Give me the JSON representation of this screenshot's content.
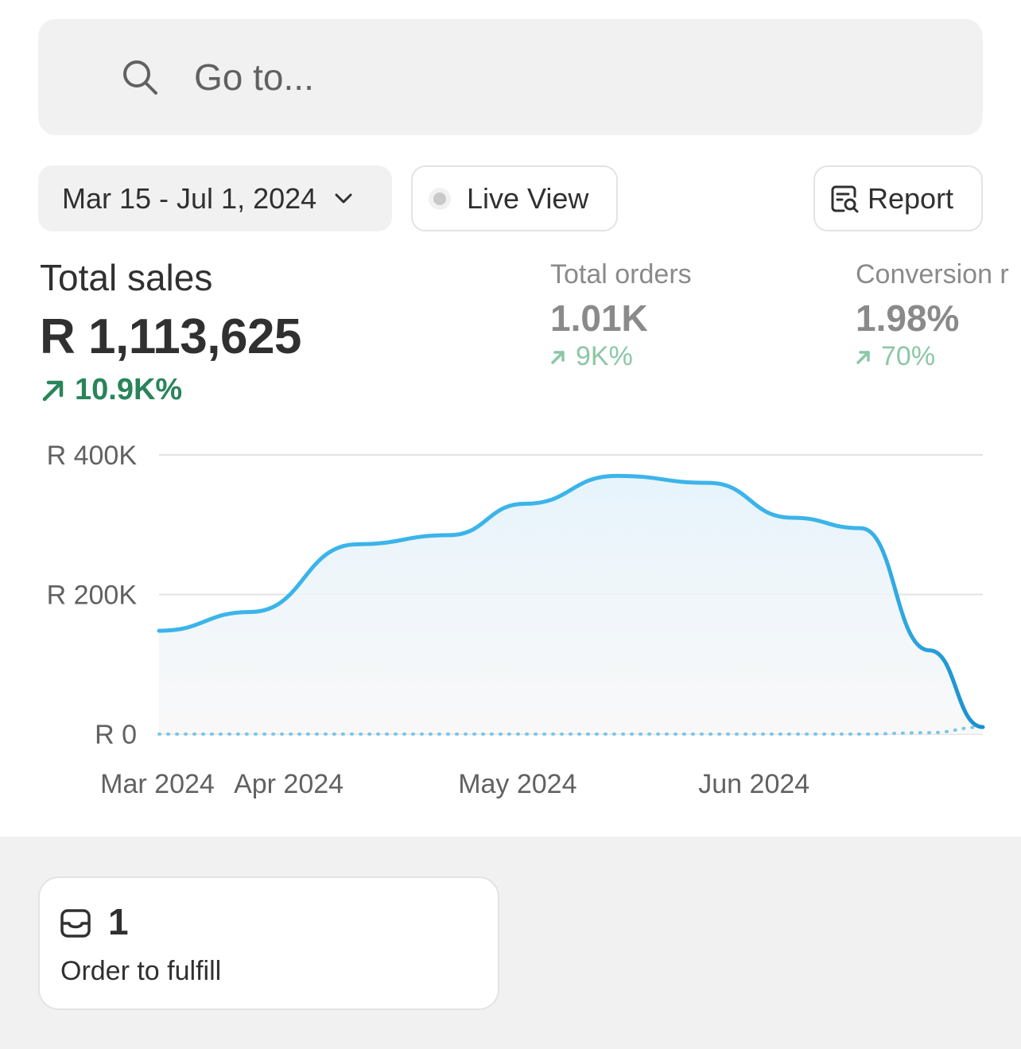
{
  "search": {
    "placeholder": "Go to..."
  },
  "toolbar": {
    "date_range": "Mar 15 - Jul 1, 2024",
    "live_view": "Live View",
    "report": "Report"
  },
  "metrics": {
    "total_sales": {
      "label": "Total sales",
      "value": "R 1,113,625",
      "change": "10.9K%"
    },
    "total_orders": {
      "label": "Total orders",
      "value": "1.01K",
      "change": "9K%"
    },
    "conversion": {
      "label": "Conversion r",
      "value": "1.98%",
      "change": "70%"
    }
  },
  "colors": {
    "accent_line": "#3bb4ea",
    "positive": "#29845a",
    "positive_muted": "#8cc7a6"
  },
  "chart_data": {
    "type": "area",
    "x": [
      "2024-03-15",
      "2024-03-27",
      "2024-04-10",
      "2024-04-22",
      "2024-05-02",
      "2024-05-14",
      "2024-05-26",
      "2024-06-06",
      "2024-06-15",
      "2024-06-24",
      "2024-07-01"
    ],
    "series": [
      {
        "values": [
          148000,
          175000,
          272000,
          285000,
          330000,
          370000,
          360000,
          310000,
          295000,
          120000,
          10000
        ]
      },
      {
        "values": [
          0,
          0,
          0,
          0,
          0,
          0,
          0,
          0,
          0,
          2000,
          10000
        ]
      }
    ],
    "x_tick_labels": [
      "Mar 2024",
      "Apr 2024",
      "May 2024",
      "Jun 2024"
    ],
    "y_tick_labels": [
      "R 400K",
      "R 200K",
      "R 0"
    ],
    "y_ticks": [
      400000,
      200000,
      0
    ],
    "ylim": [
      0,
      400000
    ],
    "grid": true,
    "legend": "none"
  },
  "todo": {
    "count": "1",
    "label": "Order to fulfill"
  }
}
